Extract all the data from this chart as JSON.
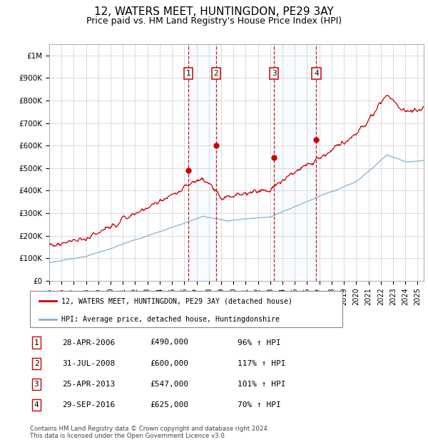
{
  "title": "12, WATERS MEET, HUNTINGDON, PE29 3AY",
  "subtitle": "Price paid vs. HM Land Registry's House Price Index (HPI)",
  "title_fontsize": 11,
  "subtitle_fontsize": 9,
  "hpi_color": "#7fb2d9",
  "price_color": "#cc0000",
  "background_color": "#ffffff",
  "grid_color": "#cccccc",
  "shade_color": "#ddeeff",
  "ylim": [
    0,
    1050000
  ],
  "xlim_start": 1995.0,
  "xlim_end": 2025.5,
  "transactions": [
    {
      "num": 1,
      "date": "28-APR-2006",
      "year": 2006.32,
      "price": 490000,
      "pct": "96%"
    },
    {
      "num": 2,
      "date": "31-JUL-2008",
      "year": 2008.58,
      "price": 600000,
      "pct": "117%"
    },
    {
      "num": 3,
      "date": "25-APR-2013",
      "year": 2013.32,
      "price": 547000,
      "pct": "101%"
    },
    {
      "num": 4,
      "date": "29-SEP-2016",
      "year": 2016.75,
      "price": 625000,
      "pct": "70%"
    }
  ],
  "legend_line1": "12, WATERS MEET, HUNTINGDON, PE29 3AY (detached house)",
  "legend_line2": "HPI: Average price, detached house, Huntingdonshire",
  "footer": "Contains HM Land Registry data © Crown copyright and database right 2024.\nThis data is licensed under the Open Government Licence v3.0.",
  "yticks": [
    0,
    100000,
    200000,
    300000,
    400000,
    500000,
    600000,
    700000,
    800000,
    900000,
    1000000
  ],
  "ytick_labels": [
    "£0",
    "£100K",
    "£200K",
    "£300K",
    "£400K",
    "£500K",
    "£600K",
    "£700K",
    "£800K",
    "£900K",
    "£1M"
  ],
  "table_rows": [
    {
      "num": "1",
      "date": "28-APR-2006",
      "price": "£490,000",
      "pct": "96% ↑ HPI"
    },
    {
      "num": "2",
      "date": "31-JUL-2008",
      "price": "£600,000",
      "pct": "117% ↑ HPI"
    },
    {
      "num": "3",
      "date": "25-APR-2013",
      "price": "£547,000",
      "pct": "101% ↑ HPI"
    },
    {
      "num": "4",
      "date": "29-SEP-2016",
      "price": "£625,000",
      "pct": "70% ↑ HPI"
    }
  ]
}
